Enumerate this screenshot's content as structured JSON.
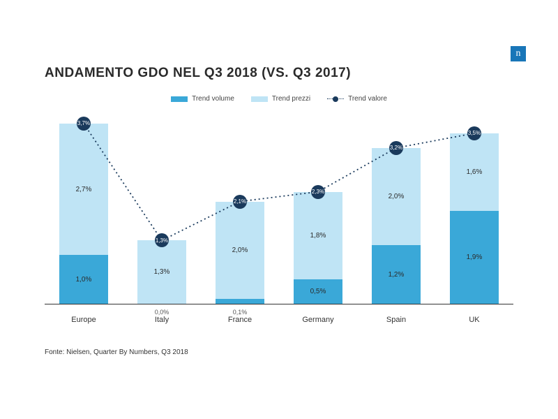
{
  "logo_glyph": "n",
  "title": "ANDAMENTO GDO NEL Q3 2018 (VS. Q3 2017)",
  "title_fontsize": 19,
  "title_color": "#2a2a2a",
  "source": "Fonte: Nielsen, Quarter By Numbers, Q3 2018",
  "legend": {
    "volume": "Trend volume",
    "prezzi": "Trend prezzi",
    "valore": "Trend valore"
  },
  "colors": {
    "volume": "#3aa8d8",
    "prezzi": "#bfe4f5",
    "valore_marker": "#1a3a5c",
    "axis": "#333333",
    "background": "#ffffff",
    "text": "#2a2a2a"
  },
  "chart": {
    "type": "stacked-bar-with-line",
    "y_max": 4.0,
    "bar_width_pct": 10.5,
    "group_gap_pct": 16.67,
    "categories": [
      "Europe",
      "Italy",
      "France",
      "Germany",
      "Spain",
      "UK"
    ],
    "series": {
      "volume": [
        1.0,
        0.0,
        0.1,
        0.5,
        1.2,
        1.9
      ],
      "prezzi": [
        2.7,
        1.3,
        2.0,
        1.8,
        2.0,
        1.6
      ],
      "valore": [
        3.7,
        1.3,
        2.1,
        2.3,
        3.2,
        3.5
      ]
    },
    "below_labels": [
      "",
      "0,0%",
      "0,1%",
      "",
      "",
      ""
    ],
    "volume_labels": [
      "1,0%",
      "",
      "",
      "0,5%",
      "1,2%",
      "1,9%"
    ],
    "prezzi_labels": [
      "2,7%",
      "1,3%",
      "2,0%",
      "1,8%",
      "2,0%",
      "1,6%"
    ],
    "valore_labels": [
      "3,7%",
      "1,3%",
      "2,1%",
      "2,3%",
      "3,2%",
      "3,5%"
    ],
    "line_style": "dotted",
    "line_width": 1.8
  }
}
